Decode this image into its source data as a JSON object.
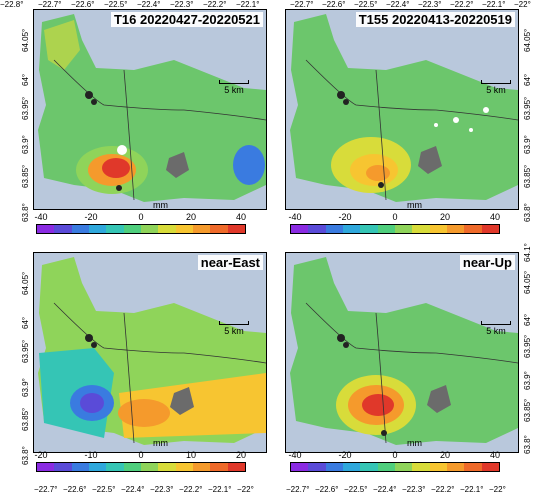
{
  "panels": [
    {
      "id": "tl",
      "title": "T16 20220427-20220521",
      "cbar_ticks": [
        "-40",
        "-20",
        "0",
        "20",
        "40"
      ],
      "unit": "mm"
    },
    {
      "id": "tr",
      "title": "T155 20220413-20220519",
      "cbar_ticks": [
        "-40",
        "-20",
        "0",
        "20",
        "40"
      ],
      "unit": "mm"
    },
    {
      "id": "bl",
      "title": "near-East",
      "cbar_ticks": [
        "-20",
        "-10",
        "0",
        "10",
        "20"
      ],
      "unit": "mm"
    },
    {
      "id": "br",
      "title": "near-Up",
      "cbar_ticks": [
        "-40",
        "-20",
        "0",
        "20",
        "40"
      ],
      "unit": "mm"
    }
  ],
  "scale_label": "5 km",
  "lon_ticks_top_left": [
    "−22.7°",
    "−22.6°",
    "−22.5°",
    "−22.4°",
    "−22.3°",
    "−22.2°",
    "−22.1°"
  ],
  "lon_ticks_top_right": [
    "−22.7°",
    "−22.6°",
    "−22.5°",
    "−22.4°",
    "−22.3°",
    "−22.2°",
    "−22.1°",
    "−22°"
  ],
  "lon_corner_left": "−22.8°",
  "lon_ticks_bottom": [
    "−22.7°",
    "−22.6°",
    "−22.5°",
    "−22.4°",
    "−22.3°",
    "−22.2°",
    "−22.1°",
    "−22°"
  ],
  "lat_ticks_left": [
    "64.05°",
    "64°",
    "63.95°",
    "63.9°",
    "63.85°",
    "63.8°"
  ],
  "lat_ticks_right_top": [
    "64.05°",
    "64°",
    "63.95°",
    "63.9°",
    "63.85°",
    "63.8°"
  ],
  "lat_ticks_right_bottom": [
    "64.1°",
    "64.05°",
    "64°",
    "63.95°",
    "63.9°",
    "63.85°",
    "63.8°"
  ],
  "colormap": [
    "#8a2be2",
    "#5a4bd8",
    "#3a7be0",
    "#2fa8dc",
    "#35c5b5",
    "#4fcf7d",
    "#8fd45a",
    "#d8dc3a",
    "#f7c531",
    "#f59a2c",
    "#ef6a2a",
    "#e0382a"
  ],
  "colors": {
    "sea": "#b9c8dc",
    "land": "#6cc66c",
    "lava": "#6b6b6b"
  }
}
